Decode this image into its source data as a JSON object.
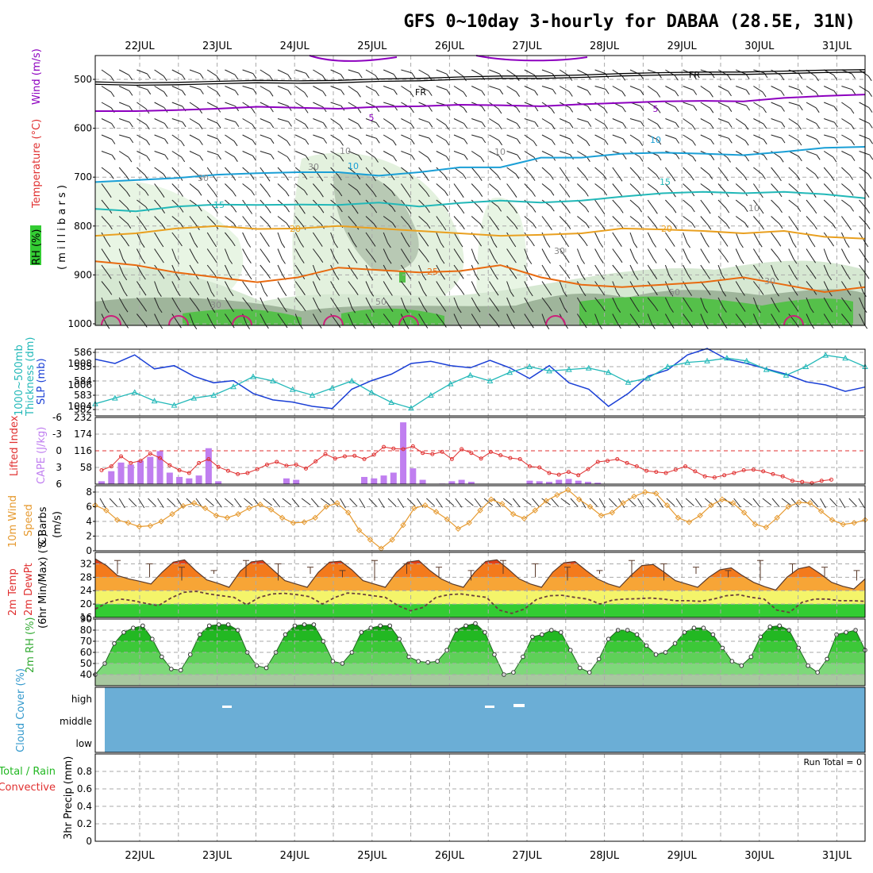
{
  "title": "GFS 0~10day 3-hourly for DABAA (28.5E, 31N)",
  "dates": [
    "22JUL",
    "23JUL",
    "24JUL",
    "25JUL",
    "26JUL",
    "27JUL",
    "28JUL",
    "29JUL",
    "30JUL",
    "31JUL"
  ],
  "colors": {
    "rh": "#33cc33",
    "purple": "#8d00bf",
    "cyan": "#1a9fd6",
    "teal": "#22b8b8",
    "orange": "#e9a020",
    "dorange": "#e86a10",
    "magenta": "#cc1f7a",
    "blue": "#1a3fd6",
    "lifted": "#e03030",
    "cape": "#c07ff0",
    "wind10": "#e69a30",
    "cloud": "#6baed6"
  },
  "chart_data": [
    {
      "type": "contour",
      "id": "upper-air",
      "ylabel_parts": {
        "rh": "RH (%)",
        "temp": "Temperature (°C)",
        "wind": "Wind (m/s)",
        "units": "( m i l l i b a r s )"
      },
      "y_ticks": [
        500,
        600,
        700,
        800,
        900,
        1000
      ],
      "contour_labels": [
        "FR",
        "FR",
        "5",
        "5",
        "10",
        "10",
        "10",
        "15",
        "15",
        "20",
        "20",
        "25",
        "10",
        "10",
        "30",
        "30",
        "30",
        "50",
        "50",
        "30",
        "30"
      ],
      "isotherms": {
        "FR": [
          510,
          512,
          511,
          509,
          507,
          508,
          507,
          504,
          503,
          500,
          498,
          498,
          496,
          493,
          491,
          490,
          490,
          488,
          486,
          485
        ],
        "5": [
          565,
          565,
          563,
          560,
          556,
          558,
          560,
          556,
          555,
          552,
          553,
          555,
          551,
          548,
          545,
          544,
          545,
          538,
          534,
          531
        ],
        "10": [
          710,
          706,
          702,
          695,
          692,
          690,
          690,
          697,
          690,
          680,
          680,
          660,
          660,
          652,
          650,
          652,
          655,
          648,
          640,
          638
        ],
        "15": [
          765,
          770,
          760,
          756,
          757,
          756,
          757,
          752,
          760,
          753,
          748,
          752,
          748,
          740,
          733,
          730,
          733,
          730,
          735,
          743
        ],
        "20": [
          820,
          815,
          805,
          800,
          806,
          805,
          800,
          805,
          810,
          815,
          820,
          818,
          815,
          805,
          807,
          810,
          815,
          810,
          822,
          826
        ],
        "25": [
          872,
          880,
          895,
          905,
          915,
          905,
          885,
          890,
          895,
          892,
          880,
          905,
          920,
          925,
          920,
          915,
          905,
          920,
          935,
          925
        ]
      }
    },
    {
      "type": "line",
      "id": "slp-thickness",
      "ylabel_left": "Thickness (dm)",
      "ylabel_left2": "1000~500mb",
      "ylabel_right": "SLP (mb)",
      "y_ticks_left": [
        582,
        583,
        584,
        585,
        586
      ],
      "y_ticks_right": [
        1004,
        1006,
        1008
      ],
      "series": [
        {
          "name": "SLP (mb)",
          "values": [
            1008.4,
            1008.0,
            1008.8,
            1007.5,
            1007.8,
            1006.8,
            1006.2,
            1006.4,
            1005.2,
            1004.6,
            1004.4,
            1004.0,
            1003.8,
            1005.6,
            1006.4,
            1007.0,
            1008.0,
            1008.2,
            1007.8,
            1007.6,
            1008.3,
            1007.6,
            1006.6,
            1007.8,
            1006.2,
            1005.6,
            1004.0,
            1005.2,
            1006.8,
            1007.4,
            1008.8,
            1009.4,
            1008.4,
            1008.0,
            1007.5,
            1007.0,
            1006.3,
            1006.0,
            1005.4,
            1005.8
          ]
        },
        {
          "name": "Thickness (dm)",
          "values": [
            582.4,
            582.8,
            583.2,
            582.6,
            582.3,
            582.8,
            583.0,
            583.6,
            584.3,
            584.0,
            583.4,
            583.0,
            583.5,
            584.0,
            583.2,
            582.5,
            582.1,
            583.0,
            583.8,
            584.4,
            584.0,
            584.6,
            585.0,
            584.7,
            584.8,
            584.9,
            584.6,
            583.9,
            584.2,
            585.0,
            585.3,
            585.4,
            585.6,
            585.4,
            584.8,
            584.4,
            585.0,
            585.8,
            585.6,
            585.0
          ]
        }
      ]
    },
    {
      "type": "bar+line",
      "id": "cape-li",
      "ylabel_left": "Lifted Index",
      "ylabel_right": "CAPE (J/kg)",
      "y_ticks_left": [
        "-6",
        "-3",
        "0",
        "3",
        "6"
      ],
      "y_ticks_right": [
        58,
        116,
        174,
        232
      ],
      "series": [
        {
          "name": "CAPE (J/kg)",
          "values": [
            10,
            45,
            75,
            68,
            82,
            95,
            115,
            40,
            25,
            20,
            30,
            125,
            10,
            0,
            0,
            0,
            0,
            0,
            0,
            20,
            15,
            0,
            0,
            0,
            0,
            0,
            0,
            25,
            20,
            30,
            40,
            215,
            55,
            15,
            0,
            2,
            10,
            15,
            8,
            0,
            0,
            0,
            0,
            0,
            12,
            10,
            8,
            15,
            18,
            12,
            8,
            5,
            0,
            0,
            0,
            0,
            0,
            0,
            0,
            0,
            0,
            0,
            0,
            0,
            0,
            0,
            0,
            0,
            0,
            0,
            0,
            0,
            0,
            0,
            0,
            0,
            0,
            0,
            0
          ]
        },
        {
          "name": "Lifted Index",
          "values": [
            3.5,
            2.8,
            1.0,
            2.2,
            1.8,
            0.5,
            1.3,
            2.6,
            3.5,
            4.0,
            2.2,
            1.5,
            2.9,
            3.6,
            4.2,
            4.0,
            3.3,
            2.5,
            2.0,
            2.7,
            2.5,
            3.2,
            1.9,
            0.6,
            1.4,
            1.0,
            0.9,
            1.5,
            0.7,
            -0.7,
            -0.4,
            -0.3,
            -0.8,
            0.4,
            0.6,
            0.2,
            1.5,
            -0.3,
            0.4,
            1.4,
            0.2,
            0.8,
            1.3,
            1.5,
            2.8,
            3.0,
            4.0,
            4.3,
            3.8,
            4.4,
            3.3,
            2.0,
            1.8,
            1.5,
            2.2,
            2.8,
            3.6,
            3.8,
            4.0,
            3.4,
            2.8,
            3.7,
            4.6,
            4.8,
            4.4,
            4.0,
            3.5,
            3.4,
            3.7,
            4.2,
            4.6,
            5.4,
            5.6,
            5.8,
            5.4,
            5.2
          ]
        }
      ]
    },
    {
      "type": "line",
      "id": "wind10m",
      "ylabel": "10m Wind Speed & Barbs (m/s)",
      "ylabel_parts": [
        "10m Wind",
        "Speed",
        "& Barbs",
        "(m/s)"
      ],
      "y_ticks": [
        0,
        2,
        4,
        6,
        8
      ],
      "series": [
        {
          "name": "10m Wind Speed",
          "values": [
            6.2,
            5.5,
            4.2,
            3.8,
            3.3,
            3.4,
            4.0,
            5.0,
            6.1,
            6.5,
            5.8,
            4.8,
            4.5,
            5.0,
            5.8,
            6.3,
            5.6,
            4.5,
            3.8,
            3.9,
            4.5,
            6.0,
            6.5,
            5.2,
            2.8,
            1.5,
            0.3,
            1.5,
            3.5,
            5.8,
            6.2,
            5.3,
            4.3,
            3.0,
            3.8,
            5.5,
            7.0,
            6.4,
            5.0,
            4.4,
            5.5,
            6.8,
            7.6,
            8.3,
            7.0,
            6.0,
            4.8,
            5.2,
            6.5,
            7.4,
            8.0,
            7.8,
            6.2,
            4.5,
            3.9,
            4.8,
            6.2,
            7.0,
            6.5,
            5.2,
            3.6,
            3.2,
            4.5,
            6.0,
            6.6,
            6.5,
            5.4,
            4.2,
            3.6,
            3.8,
            4.2
          ]
        }
      ]
    },
    {
      "type": "area",
      "id": "temp2m",
      "ylabel_parts": [
        "2m Temp",
        "2m DewPt",
        "(6hr Min/Max) (°C)"
      ],
      "y_ticks": [
        16,
        20,
        24,
        28,
        32
      ],
      "series": [
        {
          "name": "2m Temp",
          "values": [
            33.5,
            31.5,
            28.5,
            27.5,
            26.8,
            26.0,
            29.5,
            32.5,
            33.2,
            30.0,
            27.2,
            26.2,
            25.0,
            29.8,
            32.6,
            33.0,
            30.0,
            27.0,
            26.0,
            25.0,
            29.5,
            32.5,
            32.8,
            30.2,
            27.0,
            26.0,
            25.0,
            29.5,
            32.5,
            33.0,
            30.0,
            27.5,
            26.0,
            25.0,
            29.5,
            32.7,
            33.2,
            30.5,
            27.5,
            26.0,
            25.0,
            29.5,
            32.3,
            32.7,
            30.0,
            27.5,
            26.0,
            25.0,
            28.5,
            31.5,
            31.8,
            29.5,
            27.0,
            26.0,
            25.0,
            28.0,
            30.2,
            30.8,
            28.5,
            26.5,
            25.2,
            24.2,
            28.0,
            30.5,
            31.2,
            29.0,
            26.5,
            25.3,
            24.5,
            27.5
          ]
        },
        {
          "name": "2m DewPt",
          "values": [
            18.5,
            20.5,
            21.5,
            21.0,
            20.2,
            19.5,
            21.8,
            23.5,
            23.8,
            23.0,
            22.5,
            22.0,
            19.8,
            22.0,
            23.0,
            23.2,
            22.8,
            22.2,
            20.0,
            22.0,
            23.3,
            23.0,
            22.5,
            22.0,
            19.5,
            18.0,
            19.0,
            22.0,
            22.8,
            23.0,
            22.5,
            22.0,
            18.2,
            17.2,
            18.5,
            21.5,
            22.5,
            22.6,
            22.0,
            21.5,
            20.0,
            21.2,
            21.5,
            21.6,
            21.8,
            21.5,
            21.0,
            21.0,
            20.8,
            21.5,
            22.5,
            22.8,
            22.0,
            21.5,
            18.2,
            17.5,
            20.5,
            21.5,
            21.5,
            21.0,
            21.0,
            20.8
          ]
        }
      ]
    },
    {
      "type": "area",
      "id": "rh2m",
      "ylabel": "2m RH (%)",
      "y_ticks": [
        40,
        50,
        60,
        70,
        80,
        90
      ],
      "series": [
        {
          "name": "2m RH",
          "values": [
            40,
            50,
            68,
            78,
            82,
            84,
            72,
            56,
            45,
            44,
            58,
            76,
            84,
            85,
            85,
            80,
            60,
            48,
            46,
            60,
            76,
            84,
            85,
            85,
            70,
            52,
            50,
            60,
            78,
            82,
            84,
            84,
            72,
            56,
            52,
            51,
            52,
            62,
            80,
            84,
            86,
            78,
            58,
            40,
            42,
            56,
            74,
            76,
            80,
            78,
            62,
            46,
            42,
            54,
            72,
            80,
            80,
            76,
            66,
            58,
            60,
            68,
            78,
            82,
            82,
            76,
            64,
            52,
            48,
            56,
            74,
            83,
            84,
            80,
            64,
            48,
            42,
            54,
            76,
            78,
            80,
            62
          ]
        }
      ]
    },
    {
      "type": "heatmap",
      "id": "cloud",
      "ylabel": "Cloud Cover (%)",
      "levels": [
        "high",
        "middle",
        "low"
      ]
    },
    {
      "type": "bar",
      "id": "precip",
      "ylabel": "3hr Precip (mm)",
      "legend": [
        "Total / Rain",
        "Convective"
      ],
      "y_ticks": [
        "0",
        "0.2",
        "0.4",
        "0.6",
        "0.8"
      ],
      "annotation": "Run Total = 0",
      "series": [
        {
          "name": "Total / Rain",
          "values": []
        },
        {
          "name": "Convective",
          "values": []
        }
      ]
    }
  ]
}
